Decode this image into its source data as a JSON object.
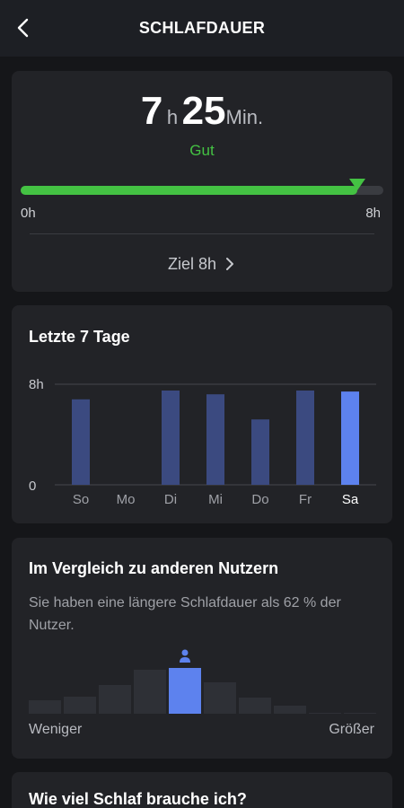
{
  "header": {
    "title": "SCHLAFDAUER"
  },
  "duration": {
    "hours": "7",
    "hours_unit": "h",
    "minutes": "25",
    "minutes_unit": "Min.",
    "rating": "Gut",
    "progress_fraction": 0.927,
    "range_start": "0h",
    "range_end": "8h",
    "goal_label": "Ziel 8h"
  },
  "week": {
    "title": "Letzte 7 Tage"
  },
  "chart_data": {
    "type": "bar",
    "categories": [
      "So",
      "Mo",
      "Di",
      "Mi",
      "Do",
      "Fr",
      "Sa"
    ],
    "values": [
      6.8,
      0,
      7.5,
      7.2,
      5.2,
      7.5,
      7.42
    ],
    "highlight_index": 6,
    "ylim": [
      0,
      8
    ],
    "ytick_labels": [
      "8h",
      "0"
    ],
    "colors": {
      "bar": "#3b4a80",
      "highlight": "#5d82ee",
      "grid": "#45474c"
    }
  },
  "compare": {
    "title": "Im Vergleich zu anderen Nutzern",
    "description": "Sie haben eine längere Schlafdauer als 62 % der Nutzer.",
    "distribution": [
      0.15,
      0.19,
      0.32,
      0.49,
      0.51,
      0.35,
      0.18,
      0.09,
      0.01,
      0.01
    ],
    "highlight_index": 4,
    "low_label": "Weniger",
    "high_label": "Größer",
    "colors": {
      "bar": "#2e3036",
      "highlight": "#5d82ee"
    }
  },
  "need": {
    "title": "Wie viel Schlaf brauche ich?"
  },
  "icons": {
    "back": "chevron-left-icon",
    "goal": "chevron-right-icon",
    "user": "person-icon"
  }
}
